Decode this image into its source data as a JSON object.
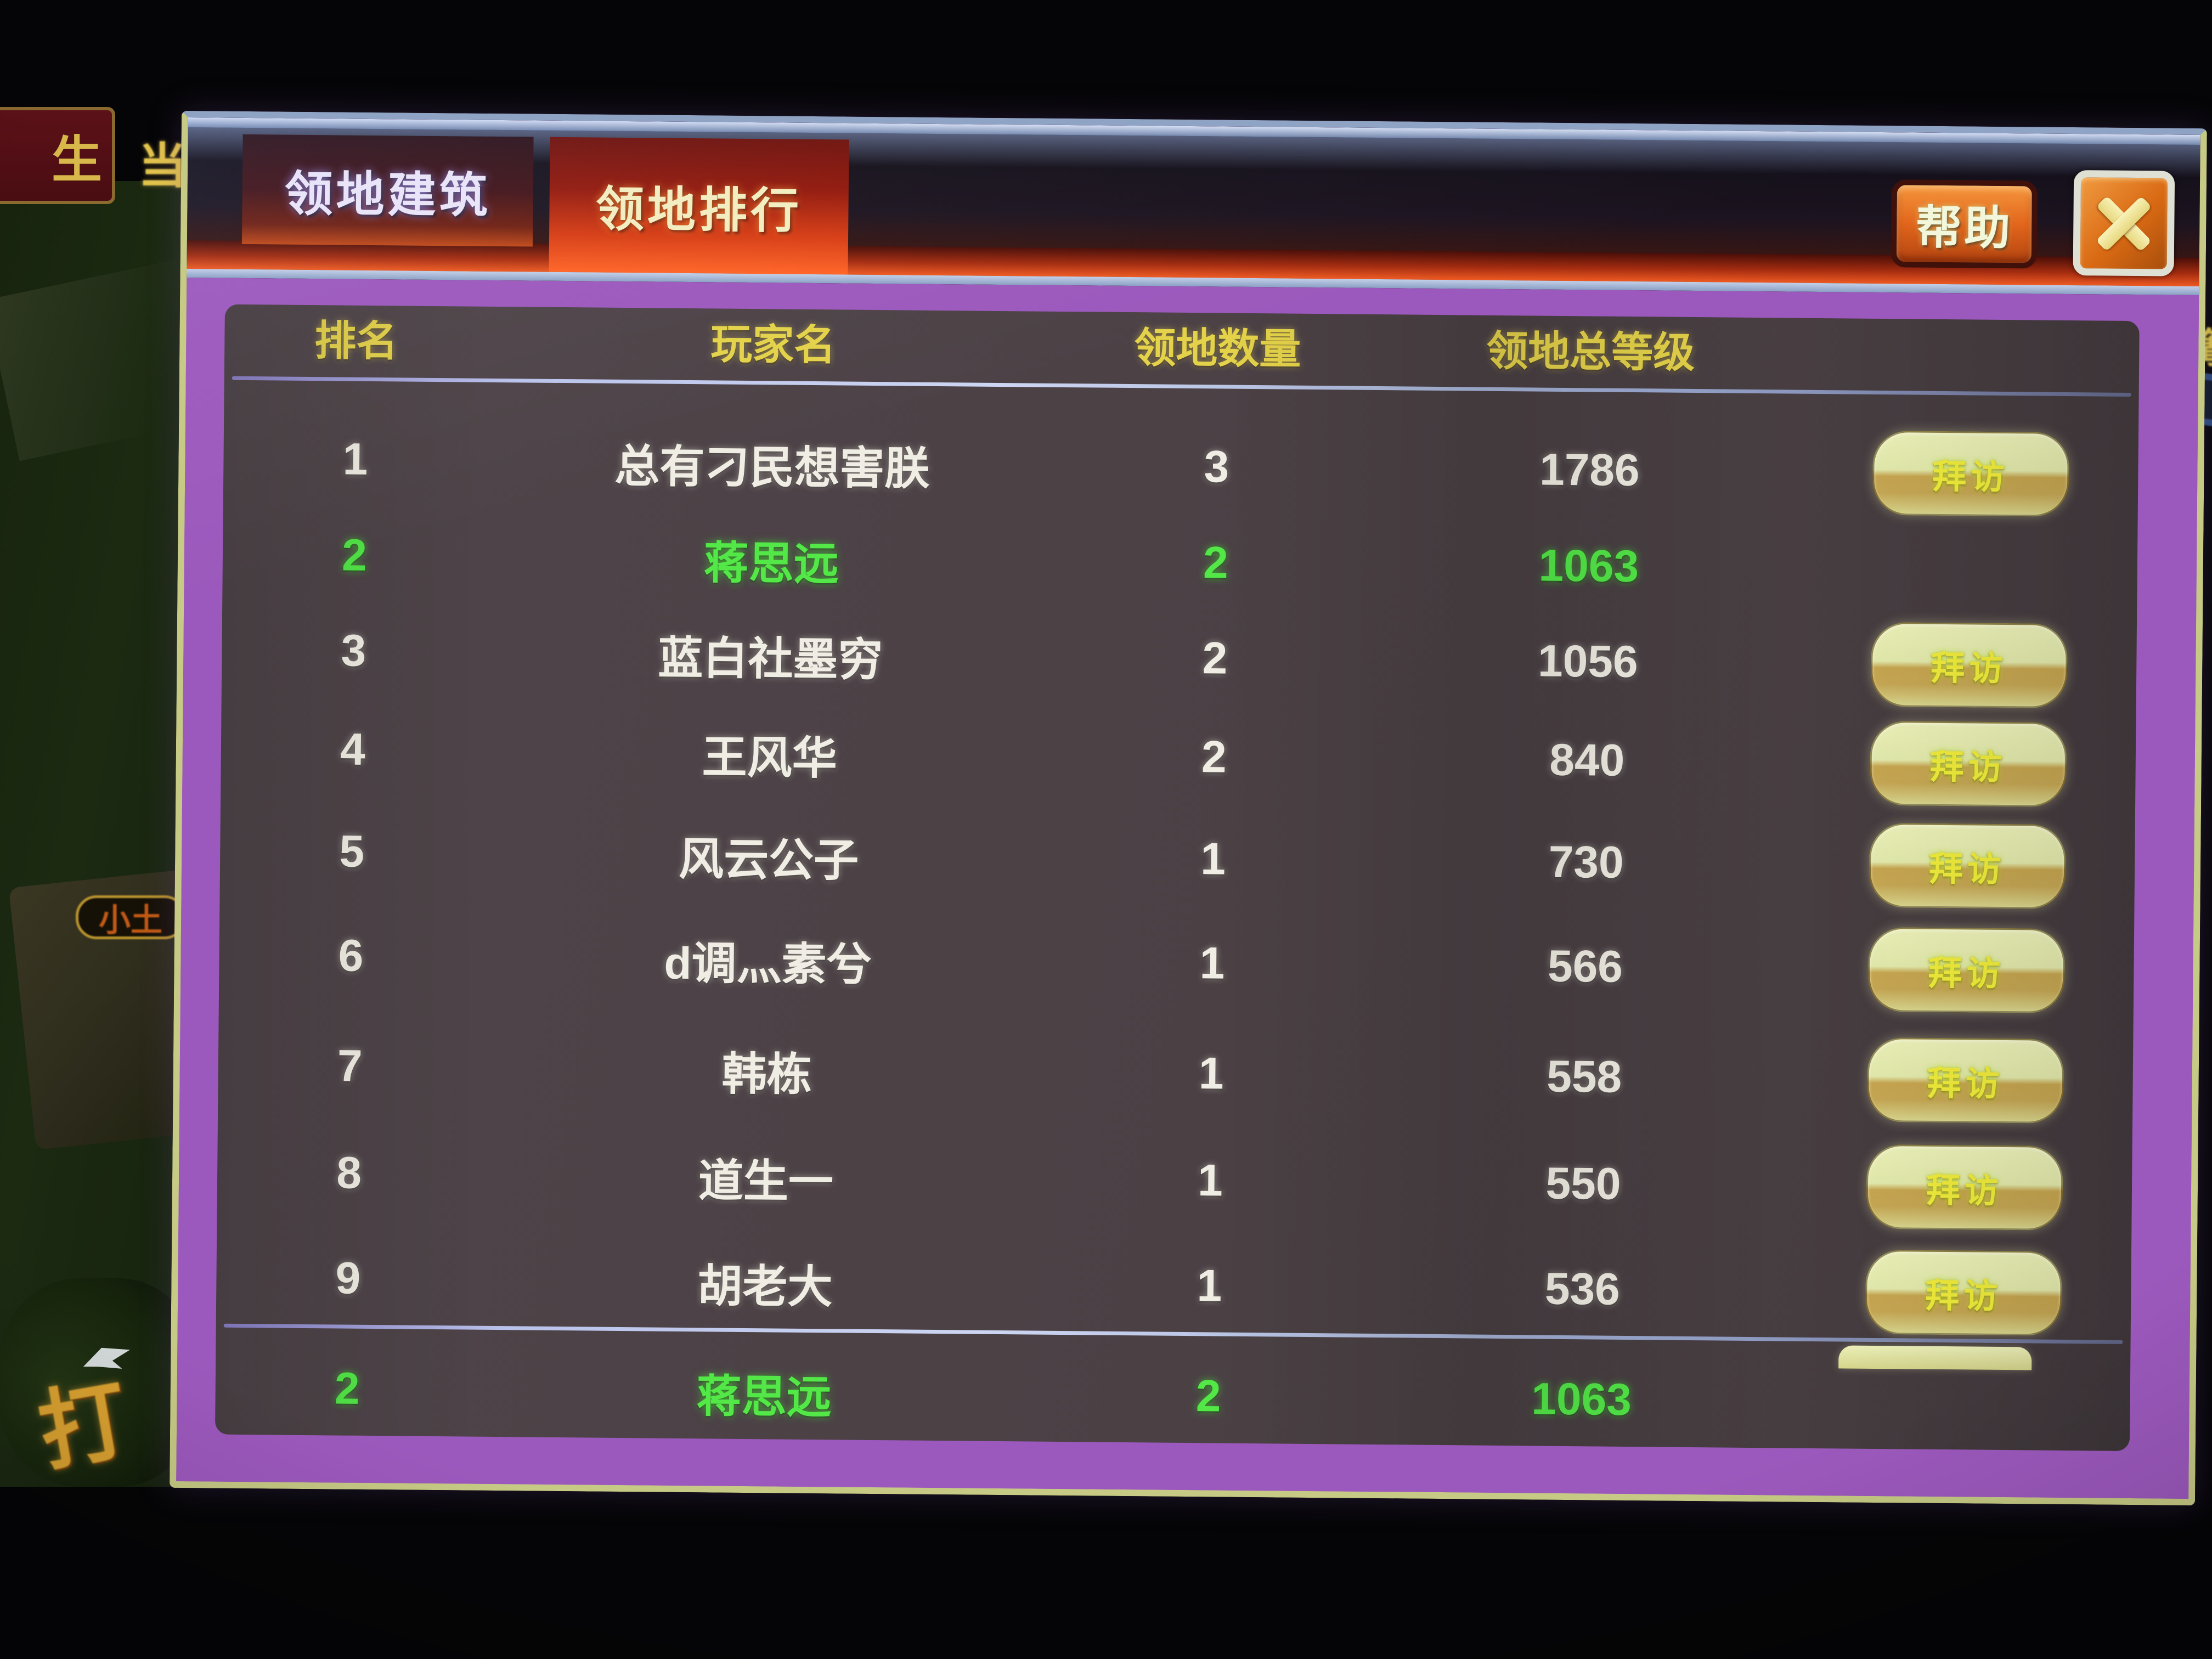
{
  "window": {
    "tabs": [
      {
        "label": "领地建筑",
        "active": false
      },
      {
        "label": "领地排行",
        "active": true
      }
    ],
    "help_label": "帮助",
    "icons": {
      "close": "x-cross"
    }
  },
  "table": {
    "headers": [
      "排名",
      "玩家名",
      "领地数量",
      "领地总等级"
    ],
    "visit_label": "拜访",
    "rows": [
      {
        "rank": "1",
        "name": "总有刁民想害朕",
        "count": "3",
        "level": "1786",
        "self": false,
        "visit": true
      },
      {
        "rank": "2",
        "name": "蒋思远",
        "count": "2",
        "level": "1063",
        "self": true,
        "visit": false
      },
      {
        "rank": "3",
        "name": "蓝白社墨穷",
        "count": "2",
        "level": "1056",
        "self": false,
        "visit": true
      },
      {
        "rank": "4",
        "name": "王风华",
        "count": "2",
        "level": "840",
        "self": false,
        "visit": true
      },
      {
        "rank": "5",
        "name": "风云公子",
        "count": "1",
        "level": "730",
        "self": false,
        "visit": true
      },
      {
        "rank": "6",
        "name": "d调灬素兮",
        "count": "1",
        "level": "566",
        "self": false,
        "visit": true
      },
      {
        "rank": "7",
        "name": "韩栋",
        "count": "1",
        "level": "558",
        "self": false,
        "visit": true
      },
      {
        "rank": "8",
        "name": "道生一",
        "count": "1",
        "level": "550",
        "self": false,
        "visit": true
      },
      {
        "rank": "9",
        "name": "胡老大",
        "count": "1",
        "level": "536",
        "self": false,
        "visit": true
      }
    ],
    "footer_row": {
      "rank": "2",
      "name": "蒋思远",
      "count": "2",
      "level": "1063",
      "self": true,
      "visit": "partial"
    }
  },
  "background": {
    "plaque_char": "生",
    "float_char": "当",
    "nameplate": "小土",
    "gold_char": "打",
    "right_char": "篝"
  },
  "colors": {
    "accent_red": "#e8481c",
    "frame_purple": "#9c59bd",
    "frame_edge": "#c6ca84",
    "panel": "#4b4145",
    "header_yellow": "#e4d24a",
    "row_white": "#f0ede4",
    "self_green": "#53e748",
    "button_gold": "#d6c878"
  }
}
